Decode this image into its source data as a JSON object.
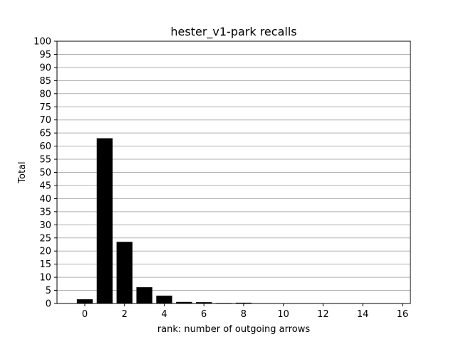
{
  "chart_data": {
    "type": "bar",
    "title": "hester_v1-park recalls",
    "xlabel": "rank: number of outgoing arrows",
    "ylabel": "Total",
    "x": [
      0,
      1,
      2,
      3,
      4,
      5,
      6,
      7,
      8
    ],
    "values": [
      1.6,
      63.0,
      23.5,
      6.2,
      3.0,
      0.6,
      0.5,
      0.2,
      0.3
    ],
    "xlim": [
      -1.4,
      16.4
    ],
    "ylim": [
      0,
      100
    ],
    "xticks": [
      0,
      2,
      4,
      6,
      8,
      10,
      12,
      14,
      16
    ],
    "yticks": [
      0,
      5,
      10,
      15,
      20,
      25,
      30,
      35,
      40,
      45,
      50,
      55,
      60,
      65,
      70,
      75,
      80,
      85,
      90,
      95,
      100
    ],
    "grid": "horizontal",
    "bar_color": "#000000",
    "grid_color": "#b0b0b0"
  }
}
